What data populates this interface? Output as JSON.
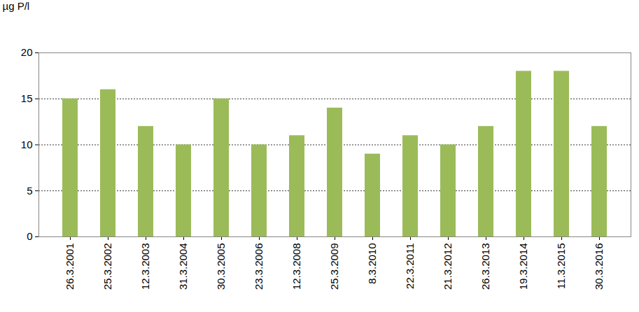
{
  "chart_data": {
    "type": "bar",
    "y_label": "µg P/l",
    "categories": [
      "26.3.2001",
      "25.3.2002",
      "12.3.2003",
      "31.3.2004",
      "30.3.2005",
      "23.3.2006",
      "12.3.2008",
      "25.3.2009",
      "8.3.2010",
      "22.3.2011",
      "21.3.2012",
      "26.3.2013",
      "19.3.2014",
      "11.3.2015",
      "30.3.2016"
    ],
    "values": [
      15,
      16,
      12,
      10,
      15,
      10,
      11,
      14,
      9,
      11,
      10,
      12,
      18,
      18,
      12
    ],
    "color": "#9bbb59",
    "ylim": [
      0,
      20
    ],
    "yticks": [
      0,
      5,
      10,
      15,
      20
    ],
    "grid": true
  }
}
